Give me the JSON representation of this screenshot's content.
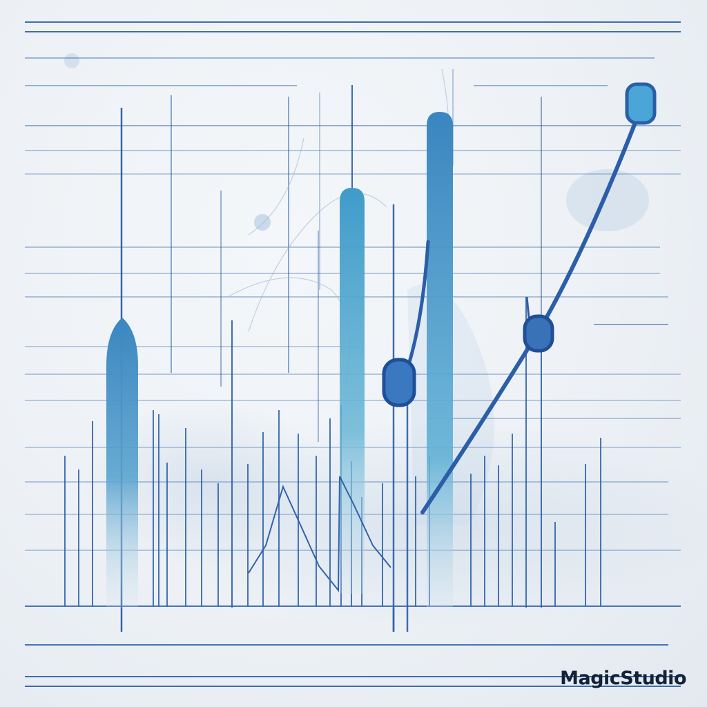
{
  "image": {
    "kind": "decorative-illustration",
    "watermark_text": "MagicStudio"
  },
  "colors": {
    "background": "#eef2f6",
    "line_dark": "#2a5fa8",
    "line_light": "#5a7fb5",
    "bar_top": "#3f9bc9",
    "bar_fade": "#d6e4ef",
    "trend_line": "#2c5ea8",
    "marker_fill": "#3a78c0",
    "marker_stroke": "#1f4f96",
    "watermark": "#122238"
  }
}
